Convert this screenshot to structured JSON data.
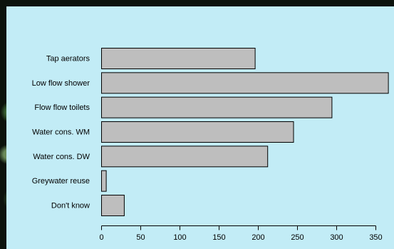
{
  "chart_data": {
    "type": "bar",
    "orientation": "horizontal",
    "categories": [
      "Tap aerators",
      "Low flow shower",
      "Flow flow toilets",
      "Water cons. WM",
      "Water cons. DW",
      "Greywater reuse",
      "Don't know"
    ],
    "values": [
      196,
      366,
      294,
      245,
      212,
      6,
      29
    ],
    "xticks": [
      0,
      50,
      100,
      150,
      200,
      250,
      300,
      350
    ],
    "xlim": [
      0,
      366
    ],
    "bar_color": "#bebebe",
    "bar_edge_color": "#000000",
    "background_color": "#c2ecf6",
    "grid": false,
    "title": "",
    "xlabel": "",
    "ylabel": ""
  }
}
